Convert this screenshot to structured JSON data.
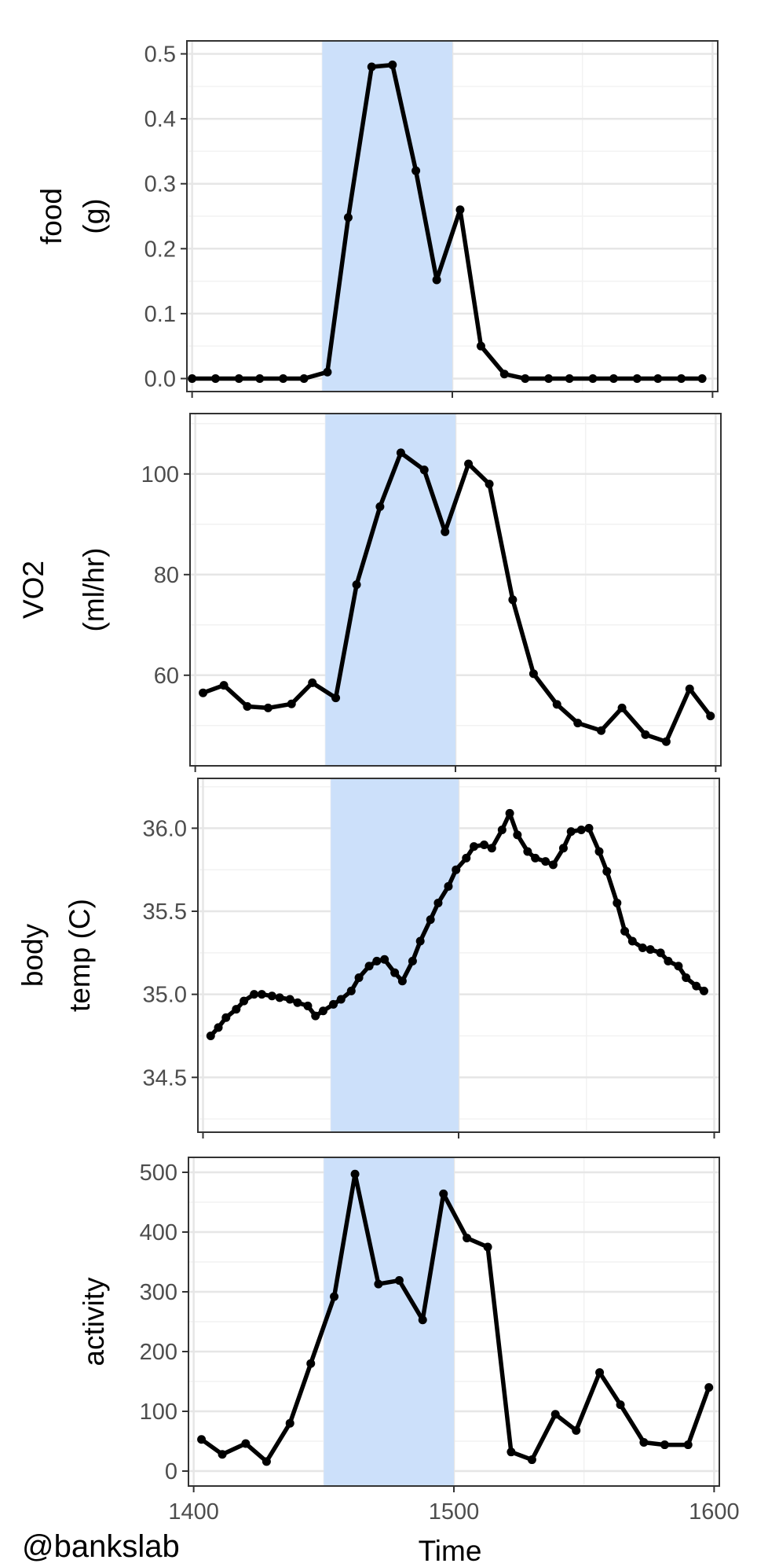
{
  "credit": "@bankslab",
  "chart_data": {
    "type": "line",
    "xlabel": "Time",
    "xlim": [
      1398,
      1602
    ],
    "x_ticks": [
      "1400",
      "1500",
      "1600"
    ],
    "shaded_interval": [
      1450,
      1500
    ],
    "shade_color": "#cce0fa",
    "line_color": "#000000",
    "grid": true,
    "panels": [
      {
        "ylabel": [
          "food",
          "(g)"
        ],
        "ylim": [
          -0.02,
          0.52
        ],
        "y_ticks": [
          "0.0",
          "0.1",
          "0.2",
          "0.3",
          "0.4",
          "0.5"
        ],
        "series": [
          {
            "x": [
              1400,
              1409,
              1418,
              1426,
              1435,
              1443,
              1452,
              1460,
              1469,
              1477,
              1486,
              1494,
              1503,
              1511,
              1520,
              1528,
              1537,
              1545,
              1554,
              1562,
              1571,
              1579,
              1588,
              1596
            ],
            "y": [
              0.0,
              0.0,
              0.0,
              0.0,
              0.0,
              0.0,
              0.01,
              0.248,
              0.48,
              0.483,
              0.32,
              0.152,
              0.26,
              0.05,
              0.007,
              0.0,
              0.0,
              0.0,
              0.0,
              0.0,
              0.0,
              0.0,
              0.0,
              0.0
            ]
          }
        ]
      },
      {
        "ylabel": [
          "VO2",
          "(ml/hr)"
        ],
        "ylim": [
          42,
          112
        ],
        "y_ticks": [
          "60",
          "80",
          "100"
        ],
        "series": [
          {
            "x": [
              1403,
              1411,
              1420,
              1428,
              1437,
              1445,
              1454,
              1462,
              1471,
              1479,
              1488,
              1496,
              1505,
              1513,
              1522,
              1530,
              1539,
              1547,
              1556,
              1564,
              1573,
              1581,
              1590,
              1598
            ],
            "y": [
              56.5,
              58.0,
              53.8,
              53.5,
              54.3,
              58.5,
              55.5,
              78.0,
              93.5,
              104.2,
              100.8,
              88.5,
              102.0,
              98.0,
              75.0,
              60.3,
              54.2,
              50.5,
              49.0,
              53.5,
              48.2,
              46.8,
              57.3,
              51.9
            ]
          }
        ]
      },
      {
        "ylabel": [
          "body",
          "temp (C)"
        ],
        "ylim": [
          34.17,
          36.3
        ],
        "y_ticks": [
          "34.5",
          "35.0",
          "35.5",
          "36.0"
        ],
        "series": [
          {
            "x": [
              1403,
              1406,
              1409,
              1413,
              1416,
              1420,
              1423,
              1427,
              1430,
              1434,
              1437,
              1441,
              1444,
              1447,
              1451,
              1454,
              1458,
              1461,
              1465,
              1468,
              1471,
              1475,
              1478,
              1482,
              1485,
              1489,
              1492,
              1496,
              1499,
              1503,
              1506,
              1510,
              1513,
              1517,
              1520,
              1523,
              1527,
              1530,
              1534,
              1537,
              1541,
              1544,
              1548,
              1551,
              1555,
              1558,
              1562,
              1565,
              1568,
              1572,
              1575,
              1579,
              1582,
              1586,
              1589,
              1593,
              1596
            ],
            "y": [
              34.75,
              34.8,
              34.86,
              34.91,
              34.96,
              35.0,
              35.0,
              34.99,
              34.98,
              34.97,
              34.95,
              34.93,
              34.87,
              34.9,
              34.94,
              34.97,
              35.02,
              35.1,
              35.17,
              35.2,
              35.21,
              35.13,
              35.08,
              35.2,
              35.32,
              35.45,
              35.55,
              35.65,
              35.75,
              35.82,
              35.89,
              35.9,
              35.88,
              35.99,
              36.09,
              35.96,
              35.86,
              35.82,
              35.8,
              35.78,
              35.88,
              35.98,
              35.99,
              36.0,
              35.86,
              35.74,
              35.55,
              35.38,
              35.32,
              35.28,
              35.27,
              35.25,
              35.2,
              35.17,
              35.1,
              35.05,
              35.02
            ]
          }
        ]
      },
      {
        "ylabel": [
          "activity"
        ],
        "ylim": [
          -25,
          525
        ],
        "y_ticks": [
          "0",
          "100",
          "200",
          "300",
          "400",
          "500"
        ],
        "series": [
          {
            "x": [
              1403,
              1411,
              1420,
              1428,
              1437,
              1445,
              1454,
              1462,
              1471,
              1479,
              1488,
              1496,
              1505,
              1513,
              1522,
              1530,
              1539,
              1547,
              1556,
              1564,
              1573,
              1581,
              1590,
              1598
            ],
            "y": [
              53,
              28,
              46,
              16,
              80,
              180,
              292,
              497,
              313,
              319,
              253,
              464,
              390,
              375,
              32,
              19,
              95,
              68,
              165,
              111,
              48,
              44,
              44,
              140
            ]
          }
        ]
      }
    ]
  }
}
